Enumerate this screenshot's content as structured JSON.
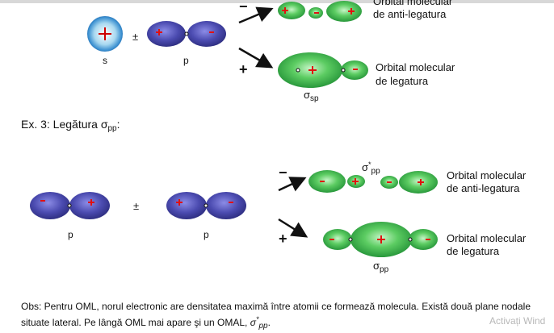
{
  "colors": {
    "blue_lobe": "#4b4bb0",
    "green_lobe": "#2db24a",
    "sign": "#e01010"
  },
  "section1": {
    "orbital_s": "s",
    "orbital_p": "p",
    "plus_minus": "±",
    "minus_sign": "−",
    "plus_sign": "+",
    "anti_label_line1": "Orbital molecular",
    "anti_label_line2": "de anti-legatura",
    "bond_label_line1": "Orbital molecular",
    "bond_label_line2": "de legatura",
    "sigma_symbol": "σ",
    "sigma_sub": "sp"
  },
  "heading": {
    "prefix": "Ex. 3: Legătura σ",
    "sub": "pp",
    "suffix": ":"
  },
  "section2": {
    "orbital_p1": "p",
    "orbital_p2": "p",
    "plus_minus": "±",
    "minus_sign": "−",
    "plus_sign": "+",
    "sigma_star_symbol": "σ",
    "sigma_star_sup": "*",
    "sigma_star_sub": "pp",
    "anti_label_line1": "Orbital molecular",
    "anti_label_line2": "de anti-legatura",
    "bond_label_line1": "Orbital molecular",
    "bond_label_line2": "de legatura",
    "sigma_symbol": "σ",
    "sigma_sub": "pp"
  },
  "observation": {
    "text": "Obs: Pentru OML, norul electronic are densitatea maximă între atomii ce formează molecula. Există două plane nodale situate lateral. Pe lângă OML mai apare şi un OMAL, ",
    "sigma": "σ",
    "sigma_sup": "*",
    "sigma_sub": "pp",
    "end": "."
  },
  "watermark": "Activați Wind"
}
